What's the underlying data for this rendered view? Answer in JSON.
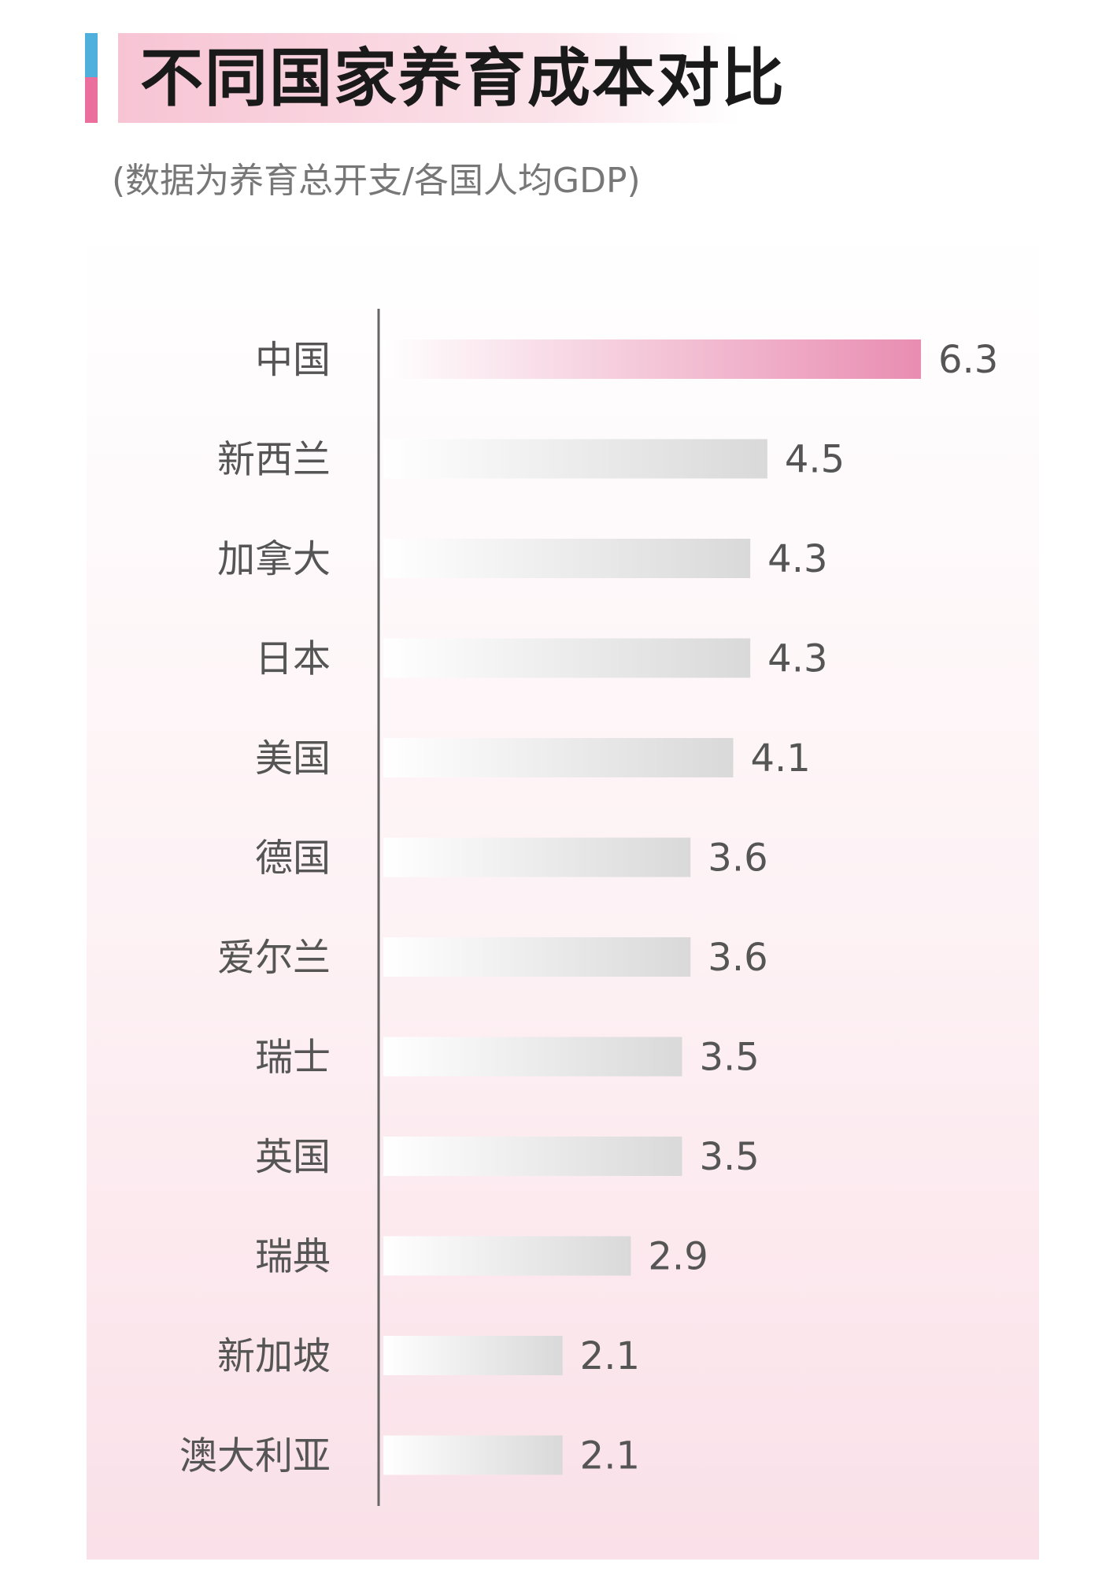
{
  "title": "不同国家养育成本对比",
  "subtitle": "(数据为养育总开支/各国人均GDP)",
  "colors": {
    "highlight_bar": "#e98db1",
    "default_bar": "#d9d9d9",
    "title_accent_blue": "#4fb0dc",
    "title_accent_pink": "#ea6f9c"
  },
  "chart_data": {
    "type": "bar",
    "orientation": "horizontal",
    "title": "不同国家养育成本对比",
    "subtitle": "(数据为养育总开支/各国人均GDP)",
    "categories": [
      "中国",
      "新西兰",
      "加拿大",
      "日本",
      "美国",
      "德国",
      "爱尔兰",
      "瑞士",
      "英国",
      "瑞典",
      "新加坡",
      "澳大利亚"
    ],
    "values": [
      6.3,
      4.5,
      4.3,
      4.3,
      4.1,
      3.6,
      3.6,
      3.5,
      3.5,
      2.9,
      2.1,
      2.1
    ],
    "value_labels": [
      "6.3",
      "4.5",
      "4.3",
      "4.3",
      "4.1",
      "3.6",
      "3.6",
      "3.5",
      "3.5",
      "2.9",
      "2.1",
      "2.1"
    ],
    "highlight": "中国",
    "xlim": [
      0,
      6.3
    ],
    "grid": false,
    "legend": "none"
  }
}
